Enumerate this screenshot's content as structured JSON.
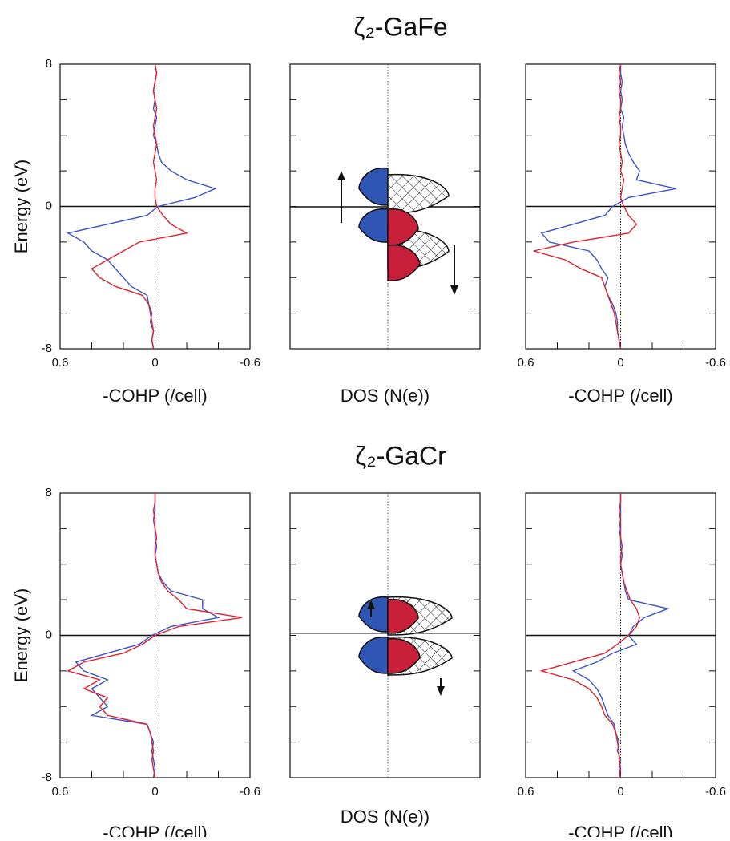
{
  "chart_data": [
    {
      "type": "line",
      "orientation": "horizontal",
      "ylabel": "Energy (eV)",
      "xlabel": "-COHP (/cell)",
      "x": [
        -8,
        -7.5,
        -7,
        -6.5,
        -6,
        -5.5,
        -5,
        -4.5,
        -4,
        -3.5,
        -3,
        -2.5,
        -2,
        -1.5,
        -1,
        -0.5,
        0,
        0.5,
        1,
        1.5,
        2,
        2.5,
        3,
        3.5,
        4,
        4.5,
        5,
        5.5,
        6,
        6.5,
        7,
        7.5,
        8
      ],
      "xlim": [
        -8,
        8
      ],
      "xticks": [
        -8,
        0,
        8
      ],
      "minor_xticks": [
        -6,
        -4,
        -2,
        2,
        4,
        6
      ],
      "ylim": [
        0.6,
        -0.6
      ],
      "yticks": [
        0.6,
        0,
        -0.6
      ],
      "minor_yticks": [
        0.4,
        0.2,
        -0.2,
        -0.4
      ],
      "hline": 0,
      "vline": 0,
      "series": [
        {
          "color": "#3a55c8",
          "values": [
            0.01,
            0.02,
            0.01,
            0.03,
            0.02,
            0.04,
            0.05,
            0.15,
            0.2,
            0.25,
            0.3,
            0.4,
            0.45,
            0.55,
            0.3,
            0.05,
            -0.02,
            -0.25,
            -0.38,
            -0.2,
            -0.1,
            -0.04,
            -0.02,
            -0.01,
            0.01,
            0,
            -0.01,
            0.01,
            0,
            0.01,
            0,
            -0.01,
            0
          ]
        },
        {
          "color": "#e02030",
          "values": [
            0.01,
            0.02,
            0.01,
            0.02,
            0.03,
            0.04,
            0.08,
            0.25,
            0.35,
            0.4,
            0.3,
            0.2,
            0.1,
            -0.2,
            -0.1,
            -0.05,
            -0.01,
            0,
            0,
            -0.01,
            0,
            0.01,
            0,
            -0.01,
            0,
            0.01,
            0,
            -0.01,
            0,
            0.01,
            0,
            -0.01,
            0
          ]
        }
      ]
    },
    {
      "type": "schematic",
      "title": "ζ₂-GaFe",
      "xlabel": "DOS (N(e))"
    },
    {
      "type": "line",
      "orientation": "horizontal",
      "xlabel": "-COHP (/cell)",
      "x": [
        -8,
        -7.5,
        -7,
        -6.5,
        -6,
        -5.5,
        -5,
        -4.5,
        -4,
        -3.5,
        -3,
        -2.5,
        -2,
        -1.5,
        -1,
        -0.5,
        0,
        0.5,
        1,
        1.5,
        2,
        2.5,
        3,
        3.5,
        4,
        4.5,
        5,
        5.5,
        6,
        6.5,
        7,
        7.5,
        8
      ],
      "xlim": [
        -8,
        8
      ],
      "minor_xticks": [
        -6,
        -4,
        -2,
        2,
        4,
        6
      ],
      "ylim": [
        0.6,
        -0.6
      ],
      "yticks": [
        0.6,
        0,
        -0.6
      ],
      "minor_yticks": [
        0.4,
        0.2,
        -0.2,
        -0.4
      ],
      "hline": 0,
      "vline": 0,
      "series": [
        {
          "color": "#3a55c8",
          "values": [
            0,
            0.01,
            0.02,
            0.02,
            0.03,
            0.05,
            0.08,
            0.1,
            0.08,
            0.12,
            0.15,
            0.2,
            0.45,
            0.5,
            0.3,
            0.1,
            0.05,
            -0.05,
            -0.35,
            -0.1,
            -0.12,
            -0.08,
            -0.05,
            -0.03,
            -0.02,
            -0.01,
            -0.02,
            0,
            -0.01,
            0,
            -0.01,
            0,
            0
          ]
        },
        {
          "color": "#e02030",
          "values": [
            0,
            0.01,
            0.02,
            0.03,
            0.04,
            0.06,
            0.08,
            0.1,
            0.12,
            0.25,
            0.35,
            0.55,
            0.3,
            -0.05,
            -0.1,
            -0.05,
            -0.02,
            0,
            -0.01,
            -0.02,
            0,
            -0.01,
            0,
            0.01,
            0,
            0,
            0.01,
            0,
            0,
            0.01,
            0,
            0.01,
            0
          ]
        }
      ]
    },
    {
      "type": "line",
      "orientation": "horizontal",
      "ylabel": "Energy (eV)",
      "xlabel": "-COHP (/cell)",
      "x": [
        -8,
        -7.5,
        -7,
        -6.5,
        -6,
        -5.5,
        -5,
        -4.5,
        -4,
        -3.5,
        -3,
        -2.5,
        -2,
        -1.5,
        -1,
        -0.5,
        0,
        0.5,
        1,
        1.5,
        2,
        2.5,
        3,
        3.5,
        4,
        4.5,
        5,
        5.5,
        6,
        6.5,
        7,
        7.5,
        8
      ],
      "xlim": [
        -8,
        8
      ],
      "xticks": [
        -8,
        0,
        8
      ],
      "minor_xticks": [
        -6,
        -4,
        -2,
        2,
        4,
        6
      ],
      "ylim": [
        0.6,
        -0.6
      ],
      "yticks": [
        0.6,
        0,
        -0.6
      ],
      "minor_yticks": [
        0.4,
        0.2,
        -0.2,
        -0.4
      ],
      "hline": 0,
      "vline": 0,
      "series": [
        {
          "color": "#3a55c8",
          "values": [
            0.01,
            0,
            0.01,
            0.02,
            0.01,
            0.03,
            0.05,
            0.4,
            0.3,
            0.35,
            0.4,
            0.3,
            0.45,
            0.5,
            0.3,
            0.1,
            0.02,
            -0.1,
            -0.4,
            -0.3,
            -0.3,
            -0.1,
            -0.05,
            -0.02,
            -0.01,
            0,
            -0.01,
            0,
            0,
            0.01,
            0,
            0,
            0
          ]
        },
        {
          "color": "#e02030",
          "values": [
            0,
            0.01,
            0.02,
            0.01,
            0.02,
            0.03,
            0.05,
            0.3,
            0.35,
            0.3,
            0.45,
            0.35,
            0.55,
            0.45,
            0.2,
            0.08,
            0,
            -0.15,
            -0.55,
            -0.2,
            -0.15,
            -0.08,
            -0.04,
            -0.02,
            -0.01,
            0,
            0,
            -0.01,
            0,
            0,
            0.01,
            0,
            0
          ]
        }
      ]
    },
    {
      "type": "schematic",
      "title": "ζ₂-GaCr",
      "xlabel": "DOS (N(e))"
    },
    {
      "type": "line",
      "orientation": "horizontal",
      "xlabel": "-COHP (/cell)",
      "x": [
        -8,
        -7.5,
        -7,
        -6.5,
        -6,
        -5.5,
        -5,
        -4.5,
        -4,
        -3.5,
        -3,
        -2.5,
        -2,
        -1.5,
        -1,
        -0.5,
        0,
        0.5,
        1,
        1.5,
        2,
        2.5,
        3,
        3.5,
        4,
        4.5,
        5,
        5.5,
        6,
        6.5,
        7,
        7.5,
        8
      ],
      "xlim": [
        -8,
        8
      ],
      "minor_xticks": [
        -6,
        -4,
        -2,
        2,
        4,
        6
      ],
      "ylim": [
        0.6,
        -0.6
      ],
      "yticks": [
        0.6,
        0,
        -0.6
      ],
      "minor_yticks": [
        0.4,
        0.2,
        -0.2,
        -0.4
      ],
      "hline": 0,
      "vline": 0,
      "series": [
        {
          "color": "#3a55c8",
          "values": [
            0,
            0.01,
            0,
            0.02,
            0.01,
            0.03,
            0.04,
            0.08,
            0.1,
            0.12,
            0.15,
            0.2,
            0.3,
            0.15,
            0.05,
            -0.1,
            -0.05,
            -0.08,
            -0.15,
            -0.3,
            -0.05,
            -0.03,
            -0.02,
            -0.01,
            0,
            -0.01,
            0,
            0,
            0.01,
            0,
            0,
            0,
            0
          ]
        },
        {
          "color": "#e02030",
          "values": [
            0.01,
            0,
            0.01,
            0.01,
            0.02,
            0.03,
            0.05,
            0.1,
            0.12,
            0.15,
            0.2,
            0.3,
            0.5,
            0.3,
            0.1,
            0.02,
            -0.05,
            -0.1,
            -0.12,
            -0.1,
            -0.06,
            -0.04,
            -0.02,
            -0.01,
            0,
            0,
            -0.01,
            0,
            0,
            0,
            0.01,
            0,
            0
          ]
        }
      ]
    }
  ]
}
